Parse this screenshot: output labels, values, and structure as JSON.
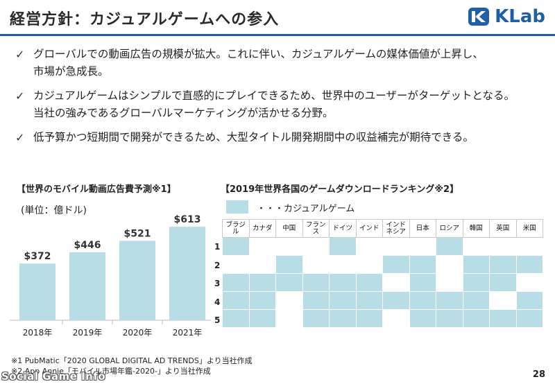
{
  "header": {
    "title": "経営方針：カジュアルゲームへの参入",
    "logo_text": "KLab",
    "brand_color": "#1f5fa8"
  },
  "bullets": [
    {
      "lines": [
        "グローバルでの動画広告の規模が拡大。これに伴い、カジュアルゲームの媒体価値が上昇し、",
        "市場が急成長。"
      ]
    },
    {
      "lines": [
        "カジュアルゲームはシンプルで直感的にプレイできるため、世界中のユーザーがターゲットとなる。",
        "当社の強みであるグローバルマーケティングが活かせる分野。"
      ]
    },
    {
      "lines": [
        "低予算かつ短期間で開発ができるため、大型タイトル開発期間中の収益補完が期待できる。"
      ]
    }
  ],
  "left_panel": {
    "title": "【世界のモバイル動画広告費予測※1】",
    "unit": "(単位：億ドル)"
  },
  "chart_data": {
    "type": "bar",
    "categories": [
      "2018年",
      "2019年",
      "2020年",
      "2021年"
    ],
    "values": [
      372,
      446,
      521,
      613
    ],
    "value_labels": [
      "$372",
      "$446",
      "$521",
      "$613"
    ],
    "ylim": [
      0,
      700
    ],
    "bar_color": "#b8dde6",
    "grid": false
  },
  "right_panel": {
    "title": "【2019年世界各国のゲームダウンロードランキング※2】",
    "legend_label": "・・・カジュアルゲーム",
    "highlight_color": "#b8dde6",
    "countries": [
      "ブラジル",
      "カナダ",
      "中国",
      "フランス",
      "ドイツ",
      "インド",
      "インドネシア",
      "日本",
      "ロシア",
      "韓国",
      "英国",
      "米国"
    ],
    "ranks": [
      "1",
      "2",
      "3",
      "4",
      "5"
    ],
    "casual_matrix": [
      [
        1,
        0,
        0,
        0,
        1,
        0,
        0,
        0,
        1,
        0,
        0,
        0
      ],
      [
        0,
        0,
        1,
        0,
        0,
        0,
        1,
        1,
        0,
        1,
        1,
        1
      ],
      [
        1,
        1,
        1,
        1,
        1,
        1,
        0,
        1,
        0,
        1,
        1,
        0
      ],
      [
        1,
        1,
        0,
        1,
        1,
        1,
        1,
        1,
        1,
        1,
        0,
        1
      ],
      [
        1,
        1,
        0,
        1,
        1,
        1,
        0,
        1,
        1,
        1,
        1,
        1
      ]
    ]
  },
  "footnotes": [
    "※1 PubMatic「2020 GLOBAL DIGITAL AD TRENDS」より当社作成",
    "※2 App Annie「モバイル市場年鑑-2020-」より当社作成"
  ],
  "page_number": "28",
  "watermark": "Social Game Info"
}
